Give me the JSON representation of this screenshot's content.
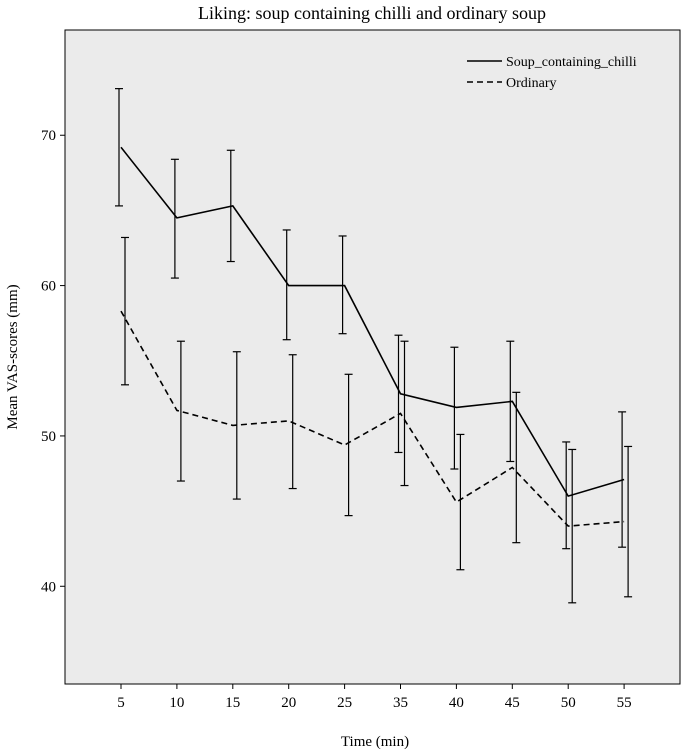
{
  "chart_data": {
    "type": "line",
    "title": "Liking: soup containing chilli and ordinary soup",
    "xlabel": "Time (min)",
    "ylabel": "Mean VAS-scores (mm)",
    "categories": [
      "5",
      "10",
      "15",
      "20",
      "25",
      "35",
      "40",
      "45",
      "50",
      "55"
    ],
    "yticks": [
      40,
      50,
      60,
      70
    ],
    "ylim": [
      33.5,
      77
    ],
    "grid": false,
    "legend_position": "top-right",
    "series": [
      {
        "name": "Soup_containing_chilli",
        "line_style": "solid",
        "values": [
          69.2,
          64.5,
          65.3,
          60.0,
          60.0,
          52.8,
          51.9,
          52.3,
          46.0,
          47.1
        ],
        "error_low": [
          65.3,
          60.5,
          61.6,
          56.4,
          56.8,
          48.9,
          47.8,
          48.3,
          42.5,
          42.6
        ],
        "error_high": [
          73.1,
          68.4,
          69.0,
          63.7,
          63.3,
          56.7,
          55.9,
          56.3,
          49.6,
          51.6
        ]
      },
      {
        "name": "Ordinary",
        "line_style": "dashed",
        "values": [
          58.3,
          51.7,
          50.7,
          51.0,
          49.4,
          51.5,
          45.6,
          47.9,
          44.0,
          44.3
        ],
        "error_low": [
          53.4,
          47.0,
          45.8,
          46.5,
          44.7,
          46.7,
          41.1,
          42.9,
          38.9,
          39.3
        ],
        "error_high": [
          63.2,
          56.3,
          55.6,
          55.4,
          54.1,
          56.3,
          50.1,
          52.9,
          49.1,
          49.3
        ]
      }
    ],
    "colors": {
      "plot_background": "#ebebeb",
      "line": "#000000"
    }
  }
}
